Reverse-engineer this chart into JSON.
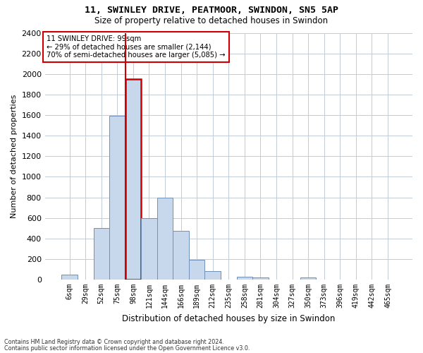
{
  "title1": "11, SWINLEY DRIVE, PEATMOOR, SWINDON, SN5 5AP",
  "title2": "Size of property relative to detached houses in Swindon",
  "xlabel": "Distribution of detached houses by size in Swindon",
  "ylabel": "Number of detached properties",
  "footnote1": "Contains HM Land Registry data © Crown copyright and database right 2024.",
  "footnote2": "Contains public sector information licensed under the Open Government Licence v3.0.",
  "annotation_line1": "11 SWINLEY DRIVE: 99sqm",
  "annotation_line2": "← 29% of detached houses are smaller (2,144)",
  "annotation_line3": "70% of semi-detached houses are larger (5,085) →",
  "bar_color": "#c8d8ec",
  "bar_edge_color": "#7090b8",
  "highlight_line_color": "#cc0000",
  "highlight_bar_index": 4,
  "categories": [
    "6sqm",
    "29sqm",
    "52sqm",
    "75sqm",
    "98sqm",
    "121sqm",
    "144sqm",
    "166sqm",
    "189sqm",
    "212sqm",
    "235sqm",
    "258sqm",
    "281sqm",
    "304sqm",
    "327sqm",
    "350sqm",
    "373sqm",
    "396sqm",
    "419sqm",
    "442sqm",
    "465sqm"
  ],
  "values": [
    50,
    0,
    500,
    1590,
    1950,
    595,
    800,
    475,
    195,
    85,
    0,
    30,
    20,
    0,
    0,
    20,
    0,
    0,
    0,
    0,
    0
  ],
  "ylim": [
    0,
    2400
  ],
  "yticks": [
    0,
    200,
    400,
    600,
    800,
    1000,
    1200,
    1400,
    1600,
    1800,
    2000,
    2200,
    2400
  ],
  "background_color": "#ffffff",
  "grid_color": "#c0ccd8"
}
